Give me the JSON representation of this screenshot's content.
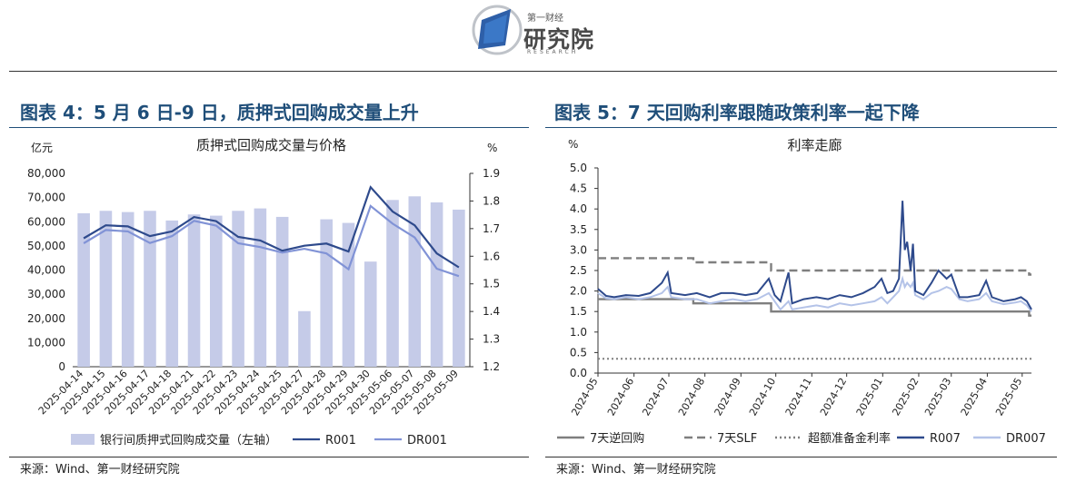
{
  "header": {
    "brand_top": "第一财经",
    "brand_main": "研究院",
    "brand_sub": "RESEARCH"
  },
  "left_panel": {
    "heading": "图表 4：5 月 6 日-9 日，质押式回购成交量上升",
    "source": "来源：Wind、第一财经研究院"
  },
  "right_panel": {
    "heading": "图表 5：7 天回购利率跟随政策利率一起下降",
    "source": "来源：Wind、第一财经研究院"
  },
  "chart_data": [
    {
      "type": "bar",
      "title": "质押式回购成交量与价格",
      "ylabel_left": "亿元",
      "ylabel_right": "%",
      "categories": [
        "2025-04-14",
        "2025-04-15",
        "2025-04-16",
        "2025-04-17",
        "2025-04-18",
        "2025-04-21",
        "2025-04-22",
        "2025-04-23",
        "2025-04-24",
        "2025-04-25",
        "2025-04-27",
        "2025-04-28",
        "2025-04-29",
        "2025-04-30",
        "2025-05-06",
        "2025-05-07",
        "2025-05-08",
        "2025-05-09"
      ],
      "ylim_left": [
        0,
        80000
      ],
      "yticks_left": [
        "0",
        "10,000",
        "20,000",
        "30,000",
        "40,000",
        "50,000",
        "60,000",
        "70,000",
        "80,000"
      ],
      "ylim_right": [
        1.2,
        1.9
      ],
      "yticks_right": [
        "1.2",
        "1.3",
        "1.4",
        "1.5",
        "1.6",
        "1.7",
        "1.8",
        "1.9"
      ],
      "series": [
        {
          "name": "银行间质押式回购成交量（左轴）",
          "axis": "left",
          "kind": "bar",
          "color": "#c5cbe8",
          "values": [
            63500,
            64500,
            64000,
            64500,
            60500,
            63000,
            62500,
            64500,
            65500,
            62000,
            23000,
            61000,
            59500,
            43500,
            69000,
            70500,
            68000,
            65000
          ]
        },
        {
          "name": "R001",
          "axis": "right",
          "kind": "line",
          "color": "#2e4a8c",
          "values": [
            1.665,
            1.712,
            1.708,
            1.673,
            1.69,
            1.742,
            1.727,
            1.67,
            1.657,
            1.62,
            1.638,
            1.646,
            1.617,
            1.85,
            1.762,
            1.712,
            1.61,
            1.56
          ]
        },
        {
          "name": "DR001",
          "axis": "right",
          "kind": "line",
          "color": "#8193d6",
          "values": [
            1.647,
            1.695,
            1.69,
            1.648,
            1.673,
            1.728,
            1.711,
            1.647,
            1.633,
            1.613,
            1.627,
            1.61,
            1.553,
            1.782,
            1.718,
            1.668,
            1.555,
            1.528
          ]
        }
      ],
      "legend_position": "bottom"
    },
    {
      "type": "line",
      "title": "利率走廊",
      "ylabel": "%",
      "ylim": [
        0,
        5.0
      ],
      "yticks": [
        "0.0",
        "0.5",
        "1.0",
        "1.5",
        "2.0",
        "2.5",
        "3.0",
        "3.5",
        "4.0",
        "4.5",
        "5.0"
      ],
      "xticks": [
        "2024-05",
        "2024-06",
        "2024-07",
        "2024-08",
        "2024-09",
        "2024-10",
        "2024-11",
        "2024-12",
        "2025-01",
        "2025-02",
        "2025-03",
        "2025-04",
        "2025-05"
      ],
      "x_range": [
        "2024-05-01",
        "2025-05-09"
      ],
      "series": [
        {
          "name": "7天逆回购",
          "style": "solid",
          "color": "#7f7f7f",
          "points": [
            [
              "2024-05-01",
              1.8
            ],
            [
              "2024-07-22",
              1.8
            ],
            [
              "2024-07-22",
              1.7
            ],
            [
              "2024-09-27",
              1.7
            ],
            [
              "2024-09-27",
              1.5
            ],
            [
              "2025-05-07",
              1.5
            ],
            [
              "2025-05-07",
              1.4
            ],
            [
              "2025-05-09",
              1.4
            ]
          ]
        },
        {
          "name": "7天SLF",
          "style": "dashed",
          "color": "#7f7f7f",
          "points": [
            [
              "2024-05-01",
              2.8
            ],
            [
              "2024-07-22",
              2.8
            ],
            [
              "2024-07-22",
              2.7
            ],
            [
              "2024-09-27",
              2.7
            ],
            [
              "2024-09-27",
              2.5
            ],
            [
              "2025-05-07",
              2.5
            ],
            [
              "2025-05-07",
              2.4
            ],
            [
              "2025-05-09",
              2.4
            ]
          ]
        },
        {
          "name": "超额准备金利率",
          "style": "dotted",
          "color": "#7f7f7f",
          "points": [
            [
              "2024-05-01",
              0.35
            ],
            [
              "2025-05-09",
              0.35
            ]
          ]
        },
        {
          "name": "R007",
          "style": "solid",
          "color": "#2e4a8c",
          "points": [
            [
              "2024-05-01",
              2.05
            ],
            [
              "2024-05-08",
              1.88
            ],
            [
              "2024-05-15",
              1.85
            ],
            [
              "2024-05-25",
              1.9
            ],
            [
              "2024-06-05",
              1.88
            ],
            [
              "2024-06-15",
              1.95
            ],
            [
              "2024-06-25",
              2.2
            ],
            [
              "2024-06-30",
              2.45
            ],
            [
              "2024-07-03",
              1.95
            ],
            [
              "2024-07-15",
              1.9
            ],
            [
              "2024-07-25",
              1.95
            ],
            [
              "2024-08-05",
              1.85
            ],
            [
              "2024-08-15",
              1.95
            ],
            [
              "2024-08-25",
              1.95
            ],
            [
              "2024-09-05",
              1.9
            ],
            [
              "2024-09-15",
              1.95
            ],
            [
              "2024-09-25",
              2.3
            ],
            [
              "2024-09-30",
              1.9
            ],
            [
              "2024-10-05",
              1.75
            ],
            [
              "2024-10-12",
              2.45
            ],
            [
              "2024-10-15",
              1.7
            ],
            [
              "2024-10-25",
              1.8
            ],
            [
              "2024-11-05",
              1.85
            ],
            [
              "2024-11-15",
              1.8
            ],
            [
              "2024-11-25",
              1.9
            ],
            [
              "2024-12-05",
              1.85
            ],
            [
              "2024-12-15",
              1.95
            ],
            [
              "2024-12-25",
              2.1
            ],
            [
              "2024-12-31",
              2.3
            ],
            [
              "2025-01-05",
              1.95
            ],
            [
              "2025-01-10",
              2.0
            ],
            [
              "2025-01-15",
              2.3
            ],
            [
              "2025-01-18",
              4.2
            ],
            [
              "2025-01-20",
              3.0
            ],
            [
              "2025-01-22",
              3.2
            ],
            [
              "2025-01-25",
              2.5
            ],
            [
              "2025-01-27",
              3.15
            ],
            [
              "2025-01-29",
              2.0
            ],
            [
              "2025-02-05",
              1.9
            ],
            [
              "2025-02-12",
              2.2
            ],
            [
              "2025-02-18",
              2.5
            ],
            [
              "2025-02-25",
              2.3
            ],
            [
              "2025-03-01",
              2.4
            ],
            [
              "2025-03-08",
              1.85
            ],
            [
              "2025-03-15",
              1.85
            ],
            [
              "2025-03-25",
              1.9
            ],
            [
              "2025-03-31",
              2.25
            ],
            [
              "2025-04-05",
              1.85
            ],
            [
              "2025-04-15",
              1.75
            ],
            [
              "2025-04-25",
              1.8
            ],
            [
              "2025-04-30",
              1.85
            ],
            [
              "2025-05-05",
              1.75
            ],
            [
              "2025-05-09",
              1.55
            ]
          ]
        },
        {
          "name": "DR007",
          "style": "solid",
          "color": "#b4c3e8",
          "points": [
            [
              "2024-05-01",
              1.95
            ],
            [
              "2024-05-08",
              1.82
            ],
            [
              "2024-05-15",
              1.8
            ],
            [
              "2024-05-25",
              1.85
            ],
            [
              "2024-06-05",
              1.8
            ],
            [
              "2024-06-15",
              1.85
            ],
            [
              "2024-06-25",
              1.95
            ],
            [
              "2024-06-30",
              2.1
            ],
            [
              "2024-07-03",
              1.85
            ],
            [
              "2024-07-15",
              1.8
            ],
            [
              "2024-07-25",
              1.8
            ],
            [
              "2024-08-05",
              1.7
            ],
            [
              "2024-08-15",
              1.75
            ],
            [
              "2024-08-25",
              1.8
            ],
            [
              "2024-09-05",
              1.75
            ],
            [
              "2024-09-15",
              1.8
            ],
            [
              "2024-09-25",
              1.95
            ],
            [
              "2024-09-30",
              1.75
            ],
            [
              "2024-10-05",
              1.55
            ],
            [
              "2024-10-12",
              1.75
            ],
            [
              "2024-10-15",
              1.55
            ],
            [
              "2024-10-25",
              1.6
            ],
            [
              "2024-11-05",
              1.65
            ],
            [
              "2024-11-15",
              1.6
            ],
            [
              "2024-11-25",
              1.7
            ],
            [
              "2024-12-05",
              1.65
            ],
            [
              "2024-12-15",
              1.7
            ],
            [
              "2024-12-25",
              1.75
            ],
            [
              "2024-12-31",
              1.85
            ],
            [
              "2025-01-05",
              1.7
            ],
            [
              "2025-01-10",
              1.85
            ],
            [
              "2025-01-15",
              2.0
            ],
            [
              "2025-01-18",
              2.3
            ],
            [
              "2025-01-20",
              2.1
            ],
            [
              "2025-01-22",
              2.2
            ],
            [
              "2025-01-25",
              2.1
            ],
            [
              "2025-01-27",
              2.2
            ],
            [
              "2025-01-29",
              1.9
            ],
            [
              "2025-02-05",
              1.8
            ],
            [
              "2025-02-12",
              1.95
            ],
            [
              "2025-02-18",
              2.0
            ],
            [
              "2025-02-25",
              2.1
            ],
            [
              "2025-03-01",
              2.05
            ],
            [
              "2025-03-08",
              1.8
            ],
            [
              "2025-03-15",
              1.75
            ],
            [
              "2025-03-25",
              1.8
            ],
            [
              "2025-03-31",
              1.95
            ],
            [
              "2025-04-05",
              1.75
            ],
            [
              "2025-04-15",
              1.68
            ],
            [
              "2025-04-25",
              1.72
            ],
            [
              "2025-04-30",
              1.75
            ],
            [
              "2025-05-05",
              1.65
            ],
            [
              "2025-05-09",
              1.5
            ]
          ]
        }
      ],
      "legend_position": "bottom"
    }
  ]
}
